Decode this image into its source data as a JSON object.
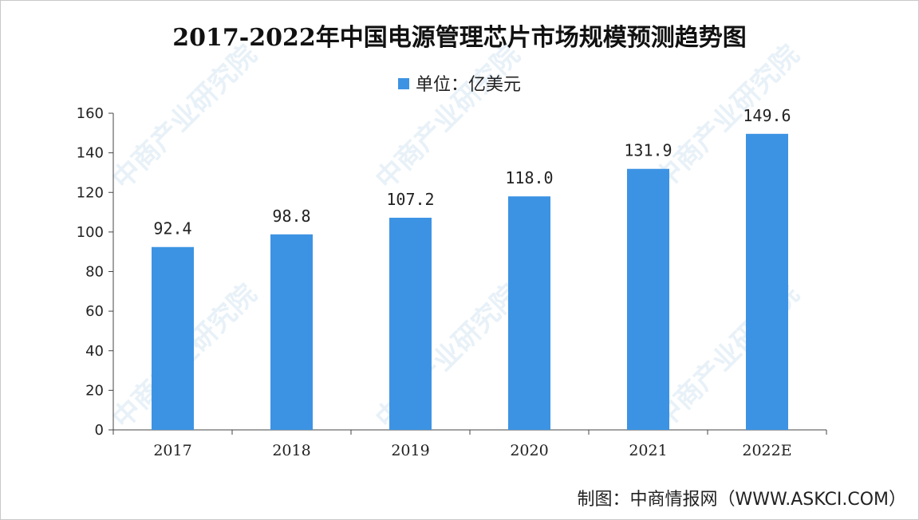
{
  "watermark": "中商产业研究院",
  "source": "制图：中商情报网（WWW.ASKCI.COM）",
  "chart_data": {
    "type": "bar",
    "title": "2017-2022年中国电源管理芯片市场规模预测趋势图",
    "legend": "单位：亿美元",
    "categories": [
      "2017",
      "2018",
      "2019",
      "2020",
      "2021",
      "2022E"
    ],
    "values": [
      92.4,
      98.8,
      107.2,
      118.0,
      131.9,
      149.6
    ],
    "value_labels": [
      "92.4",
      "98.8",
      "107.2",
      "118.0",
      "131.9",
      "149.6"
    ],
    "ylim": [
      0,
      160
    ],
    "yticks": [
      0,
      20,
      40,
      60,
      80,
      100,
      120,
      140,
      160
    ],
    "bar_color": "#3d93e3",
    "grid": false,
    "legend_position": "top-center"
  }
}
